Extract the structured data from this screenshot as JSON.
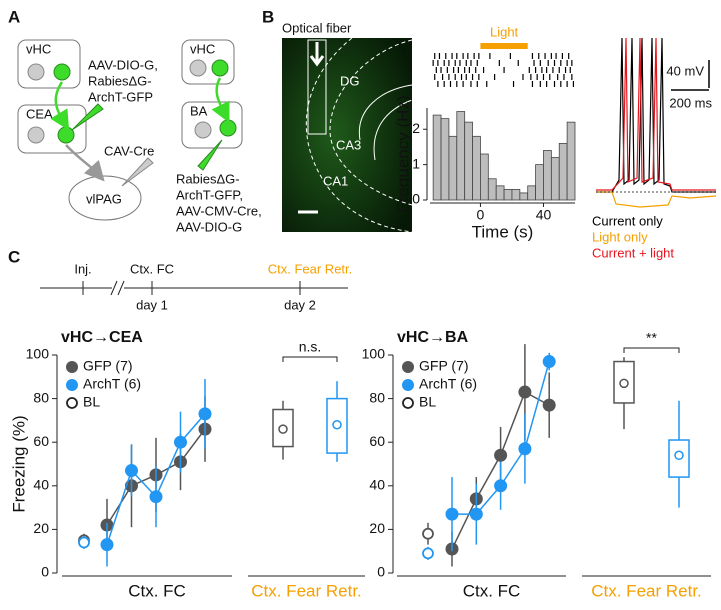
{
  "panel_a": {
    "label": "A",
    "left": {
      "source": "vHC",
      "target": "CEA",
      "output": "vlPAG",
      "injection_1": [
        "AAV-DIO-G,",
        "RabiesΔG-",
        "ArchT-GFP"
      ],
      "injection_2": "CAV-Cre"
    },
    "right": {
      "source": "vHC",
      "target": "BA",
      "injection": [
        "RabiesΔG-",
        "ArchT-GFP,",
        "AAV-CMV-Cre,",
        "AAV-DIO-G"
      ]
    }
  },
  "panel_b": {
    "label": "B",
    "image_labels": {
      "fiber": "Optical fiber",
      "dg": "DG",
      "ca3": "CA3",
      "ca1": "CA1"
    },
    "histogram": {
      "type": "histogram",
      "light_label": "Light",
      "light_color": "#f5a000",
      "light": [
        0,
        30
      ],
      "raster": [
        [
          -29,
          -26,
          -22,
          -18,
          -15,
          -11,
          -8,
          -4,
          -1,
          6,
          19,
          33,
          37,
          41,
          45,
          48,
          52,
          56
        ],
        [
          -30,
          -27,
          -23,
          -20,
          -16,
          -13,
          -9,
          -6,
          -2,
          12,
          24,
          34,
          38,
          43,
          47,
          51,
          55,
          58
        ],
        [
          -28,
          -25,
          -21,
          -17,
          -14,
          -10,
          -7,
          -3,
          2,
          15,
          31,
          35,
          39,
          42,
          46,
          50,
          54,
          57
        ],
        [
          -29,
          -24,
          -20,
          -16,
          -12,
          -9,
          -5,
          -1,
          9,
          27,
          32,
          36,
          40,
          44,
          49,
          53,
          58
        ],
        [
          -27,
          -23,
          -19,
          -15,
          -11,
          -6,
          -2,
          4,
          21,
          33,
          38,
          42,
          47,
          51,
          55,
          59
        ]
      ],
      "bins": [
        -30,
        -25,
        -20,
        -15,
        -10,
        -5,
        0,
        5,
        10,
        15,
        20,
        25,
        30,
        35,
        40,
        45,
        50,
        55,
        60
      ],
      "counts": [
        2.4,
        2.3,
        1.8,
        2.5,
        2.2,
        1.8,
        1.3,
        0.6,
        0.4,
        0.3,
        0.3,
        0.2,
        0.4,
        1.0,
        1.4,
        1.2,
        1.6,
        2.2
      ],
      "color": "#bdbdbd",
      "xlabel": "Time (s)",
      "ylabel": "Frequency (Hz)",
      "xlim": [
        -32,
        60
      ],
      "ylim": [
        0,
        2.6
      ],
      "xticks": [
        0,
        40
      ],
      "yticks": [
        0,
        1,
        2
      ]
    },
    "traces": {
      "scale_voltage": "40 mV",
      "scale_time": "200 ms",
      "legend": [
        {
          "name": "Current only",
          "color": "#000000"
        },
        {
          "name": "Light only",
          "color": "#f5a000"
        },
        {
          "name": "Current + light",
          "color": "#e8141c"
        }
      ]
    }
  },
  "panel_c": {
    "label": "C",
    "timeline": {
      "injection": "Inj.",
      "conditioning": "Ctx. FC",
      "retrieval": "Ctx. Fear Retr.",
      "day_1": "day 1",
      "day_2": "day 2",
      "retrieval_color": "#f5a000"
    },
    "charts": [
      {
        "type": "line",
        "title": "vHC→CEA",
        "ylabel": "Freezing (%)",
        "xlabel": "Ctx. FC",
        "box_xlabel": "Ctx. Fear Retr.",
        "significance": "n.s.",
        "baseline_label": "BL",
        "ylim": [
          0,
          100
        ],
        "yticks": [
          0,
          20,
          40,
          60,
          80,
          100
        ],
        "series": [
          {
            "name": "GFP (7)",
            "color": "#555555",
            "values": [
              22,
              40,
              45,
              51,
              66
            ],
            "errors": [
              12,
              19,
              17,
              13,
              15
            ],
            "baseline": 15,
            "baseline_error": 3,
            "retrieval": {
              "whisker_low": 52,
              "q1": 58,
              "q3": 75,
              "whisker_high": 79,
              "mean": 66
            }
          },
          {
            "name": "ArchT (6)",
            "color": "#2196f3",
            "values": [
              13,
              47,
              35,
              60,
              73
            ],
            "errors": [
              10,
              12,
              14,
              14,
              16
            ],
            "baseline": 14,
            "baseline_error": 3,
            "retrieval": {
              "whisker_low": 51,
              "q1": 55,
              "q3": 80,
              "whisker_high": 88,
              "mean": 68
            }
          }
        ]
      },
      {
        "type": "line",
        "title": "vHC→BA",
        "xlabel": "Ctx. FC",
        "box_xlabel": "Ctx. Fear Retr.",
        "significance": "**",
        "baseline_label": "BL",
        "ylim": [
          0,
          100
        ],
        "yticks": [
          0,
          20,
          40,
          60,
          80,
          100
        ],
        "series": [
          {
            "name": "GFP (7)",
            "color": "#555555",
            "values": [
              11,
              34,
              54,
              83,
              77
            ],
            "errors": [
              8,
              10,
              13,
              22,
              15
            ],
            "baseline": 18,
            "baseline_error": 5,
            "retrieval": {
              "whisker_low": 66,
              "q1": 78,
              "q3": 97,
              "whisker_high": 99,
              "mean": 87
            }
          },
          {
            "name": "ArchT (6)",
            "color": "#2196f3",
            "values": [
              27,
              27,
              40,
              57,
              97
            ],
            "errors": [
              17,
              14,
              11,
              16,
              4
            ],
            "baseline": 9,
            "baseline_error": 3,
            "retrieval": {
              "whisker_low": 30,
              "q1": 44,
              "q3": 61,
              "whisker_high": 79,
              "mean": 54
            }
          }
        ]
      }
    ]
  }
}
